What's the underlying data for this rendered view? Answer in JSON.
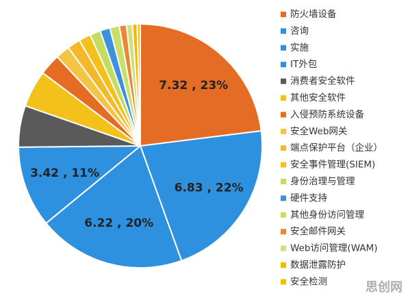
{
  "chart_data": {
    "type": "pie",
    "categories": [
      "防火墙设备",
      "咨询",
      "实施",
      "IT外包",
      "消费者安全软件",
      "其他安全软件",
      "入侵预防系统设备",
      "安全Web网关",
      "端点保护平台（企业）",
      "安全事件管理(SIEM)",
      "身份治理与管理",
      "硬件支持",
      "其他身份访问管理",
      "安全邮件网关",
      "Web访问管理(WAM)",
      "数据泄露防护",
      "安全检测"
    ],
    "values": [
      7.32,
      6.83,
      6.22,
      3.42,
      1.75,
      1.55,
      0.9,
      0.6,
      0.55,
      0.5,
      0.45,
      0.42,
      0.4,
      0.3,
      0.25,
      0.2,
      0.13
    ],
    "value_labels": [
      "7.32 , 23%",
      "6.83 , 22%",
      "6.22 , 20%",
      "3.42 , 11%",
      null,
      null,
      null,
      null,
      null,
      null,
      null,
      null,
      null,
      null,
      null,
      null,
      null
    ],
    "colors": [
      "#e46c24",
      "#2e91e0",
      "#2e91e0",
      "#2e91e0",
      "#5a5a5a",
      "#f4c01a",
      "#e46c24",
      "#f6c443",
      "#f2b92a",
      "#f4c01a",
      "#c5dc63",
      "#3c92dd",
      "#c9de6b",
      "#e8893a",
      "#cfe07a",
      "#f3b800",
      "#f3c000"
    ],
    "watermark": "思创网"
  }
}
